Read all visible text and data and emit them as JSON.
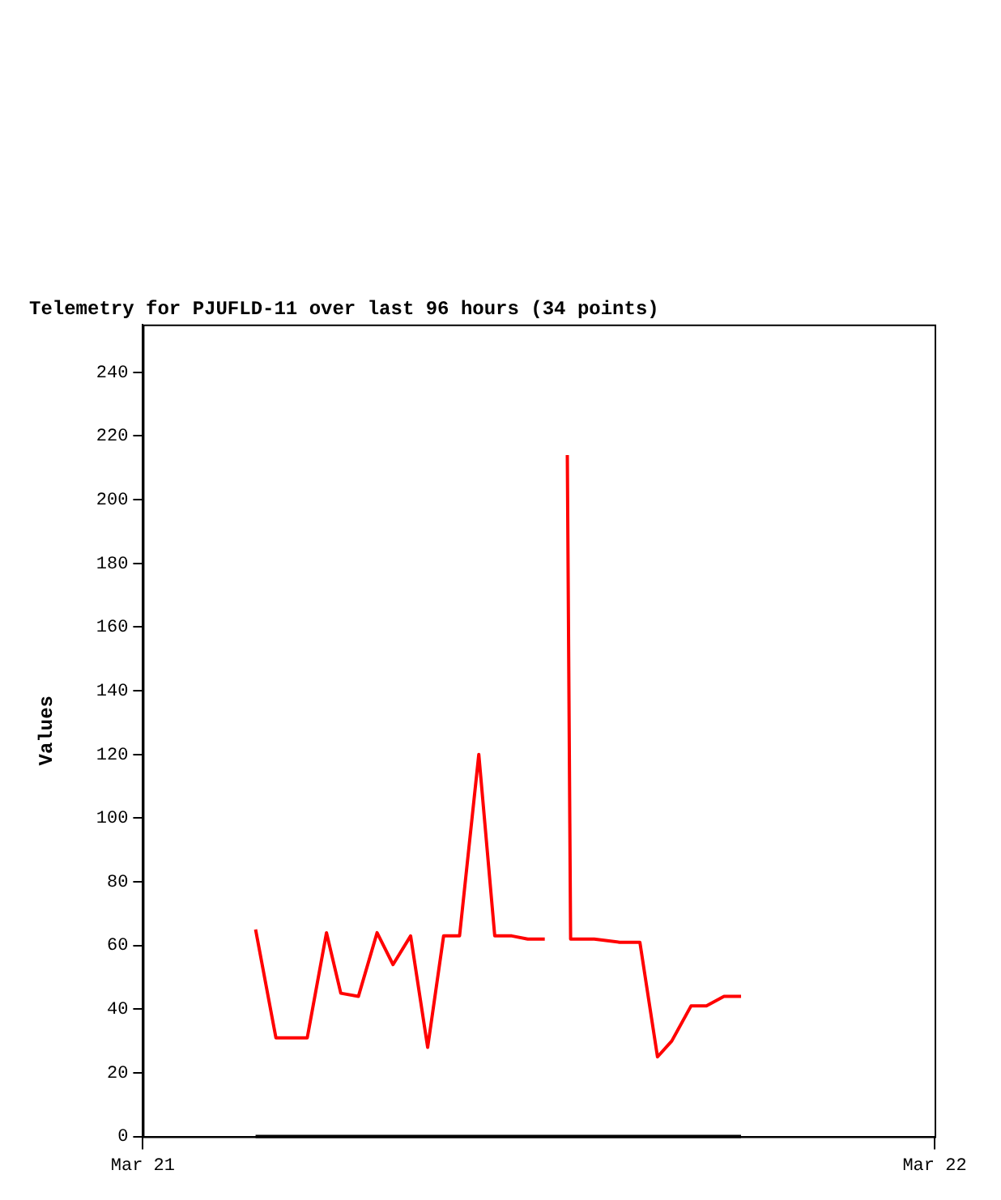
{
  "chart_data": {
    "type": "line",
    "title": "Telemetry for PJUFLD-11 over last 96 hours (34 points)",
    "ylabel": "Values",
    "x": [
      "--03-21T03:25",
      "--03-21T04:02",
      "--03-21T04:59",
      "--03-21T05:34",
      "--03-21T06:00",
      "--03-21T06:32",
      "--03-21T07:06",
      "--03-21T07:35",
      "--03-21T08:07",
      "--03-21T08:38",
      "--03-21T09:07",
      "--03-21T09:36",
      "--03-21T10:11",
      "--03-21T10:40",
      "--03-21T11:11",
      "--03-21T11:40",
      "--03-21T12:11",
      "--03-21T12:23",
      "--03-21T12:37",
      "--03-21T12:49",
      "--03-21T12:52",
      "--03-21T12:58",
      "--03-21T13:41",
      "--03-21T14:27",
      "--03-21T15:04",
      "--03-21T15:36",
      "--03-21T16:02",
      "--03-21T16:37",
      "--03-21T17:05",
      "--03-21T17:37",
      "--03-21T18:08"
    ],
    "series": [
      {
        "color": "#ff0000",
        "values": [
          65,
          31,
          31,
          64,
          45,
          44,
          64,
          54,
          63,
          28,
          63,
          63,
          120,
          63,
          63,
          62,
          62,
          null,
          null,
          null,
          214,
          62,
          62,
          61,
          61,
          25,
          30,
          41,
          41,
          44,
          44
        ]
      },
      {
        "color": "#000000",
        "values": [
          0,
          0,
          0,
          0,
          0,
          0,
          0,
          0,
          0,
          0,
          0,
          0,
          0,
          0,
          0,
          0,
          0,
          0,
          0,
          0,
          0,
          0,
          0,
          0,
          0,
          0,
          0,
          0,
          0,
          0,
          0
        ]
      }
    ],
    "xlim": [
      "--03-21",
      "--03-22"
    ],
    "xticks": [
      {
        "value": "--03-21",
        "label": "Mar 21"
      },
      {
        "value": "--03-22",
        "label": "Mar 22"
      }
    ],
    "ylim": [
      0,
      255
    ],
    "yticks": [
      0,
      20,
      40,
      60,
      80,
      100,
      120,
      140,
      160,
      180,
      200,
      220,
      240
    ],
    "grid": false,
    "legend": false,
    "marker": "none",
    "line_style": "solid"
  }
}
